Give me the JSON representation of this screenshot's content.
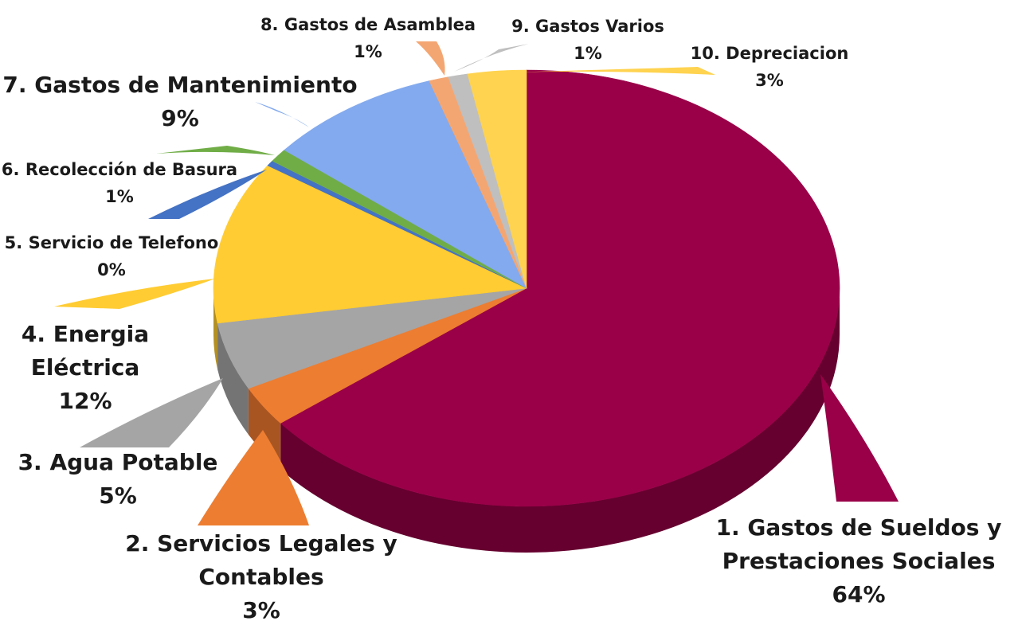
{
  "chart_data": {
    "type": "pie",
    "title": "",
    "start_angle_deg": -90,
    "direction": "clockwise",
    "percent_labels": true,
    "slices": [
      {
        "label": "1. Gastos de Sueldos y Prestaciones Sociales",
        "label_lines": [
          "1. Gastos de Sueldos y",
          "Prestaciones Sociales"
        ],
        "value": 64,
        "pct_label": "64%",
        "color": "#990048",
        "side_color": "#66002f"
      },
      {
        "label": "2. Servicios Legales y Contables",
        "label_lines": [
          "2. Servicios Legales y",
          "Contables"
        ],
        "value": 3,
        "pct_label": "3%",
        "color": "#ed7d31",
        "side_color": "#a85522"
      },
      {
        "label": "3. Agua Potable",
        "label_lines": [
          "3. Agua Potable"
        ],
        "value": 5,
        "pct_label": "5%",
        "color": "#a5a5a5",
        "side_color": "#747474"
      },
      {
        "label": "4. Energia Eléctrica",
        "label_lines": [
          "4. Energia",
          "Eléctrica"
        ],
        "value": 12,
        "pct_label": "12%",
        "color": "#ffcc33",
        "side_color": "#b38f24"
      },
      {
        "label": "5. Servicio de Telefono",
        "label_lines": [
          "5. Servicio de Telefono"
        ],
        "value": 0.4,
        "pct_label": "0%",
        "color": "#4472c4",
        "side_color": "#2f5089"
      },
      {
        "label": "6. Recolección de Basura",
        "label_lines": [
          "6. Recolección de Basura"
        ],
        "value": 1,
        "pct_label": "1%",
        "color": "#70ad47",
        "side_color": "#4e7932"
      },
      {
        "label": "7. Gastos de Mantenimiento",
        "label_lines": [
          "7. Gastos de Mantenimiento"
        ],
        "value": 9,
        "pct_label": "9%",
        "color": "#83aaee",
        "side_color": "#5c77a7"
      },
      {
        "label": "8. Gastos de Asamblea",
        "label_lines": [
          "8. Gastos de Asamblea"
        ],
        "value": 1,
        "pct_label": "1%",
        "color": "#f4a672",
        "side_color": "#ab7450"
      },
      {
        "label": "9. Gastos Varios",
        "label_lines": [
          "9. Gastos Varios"
        ],
        "value": 1,
        "pct_label": "1%",
        "color": "#bfbfbf",
        "side_color": "#868686"
      },
      {
        "label": "10. Depreciacion",
        "label_lines": [
          "10. Depreciacion"
        ],
        "value": 3,
        "pct_label": "3%",
        "color": "#ffd34f",
        "side_color": "#b39437"
      }
    ]
  }
}
